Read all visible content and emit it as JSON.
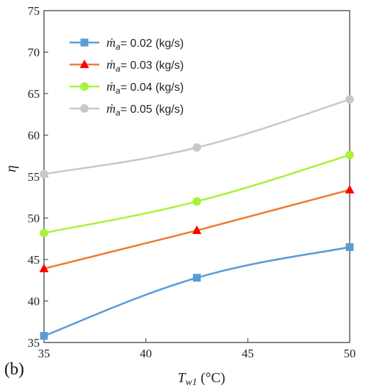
{
  "panel_label": "(b)",
  "chart_data": {
    "type": "line",
    "title": "",
    "xlabel_main": "T",
    "xlabel_sub": "w1",
    "xlabel_unit": " (°C)",
    "ylabel": "η",
    "xlim": [
      35,
      50
    ],
    "ylim": [
      35,
      75
    ],
    "xticks": [
      35,
      40,
      45,
      50
    ],
    "yticks": [
      35,
      40,
      45,
      50,
      55,
      60,
      65,
      70,
      75
    ],
    "grid": false,
    "legend_position": "top-left",
    "x": [
      35,
      42.5,
      50
    ],
    "series": [
      {
        "name": "ṁa= 0.02  (kg/s)",
        "legend_symbol": "ṁ",
        "legend_sub": "a",
        "legend_rest": "= 0.02  (kg/s)",
        "values": [
          35.8,
          42.8,
          46.5
        ],
        "color": "#5b9bd5",
        "marker": "square"
      },
      {
        "name": "ṁa= 0.03  (kg/s)",
        "legend_symbol": "ṁ",
        "legend_sub": "a",
        "legend_rest": "= 0.03  (kg/s)",
        "values": [
          43.9,
          48.5,
          53.4
        ],
        "color": "#ed7d31",
        "marker": "triangle"
      },
      {
        "name": "ṁa= 0.04  (kg/s)",
        "legend_symbol": "ṁ",
        "legend_sub": "a",
        "legend_rest": "= 0.04  (kg/s)",
        "values": [
          48.2,
          52.0,
          57.6
        ],
        "color": "#a9f23a",
        "marker": "circle"
      },
      {
        "name": "ṁa= 0.05  (kg/s)",
        "legend_symbol": "ṁ",
        "legend_sub": "a",
        "legend_rest": "= 0.05  (kg/s)",
        "values": [
          55.3,
          58.5,
          64.3
        ],
        "color": "#c8c8c8",
        "marker": "circle"
      }
    ]
  }
}
